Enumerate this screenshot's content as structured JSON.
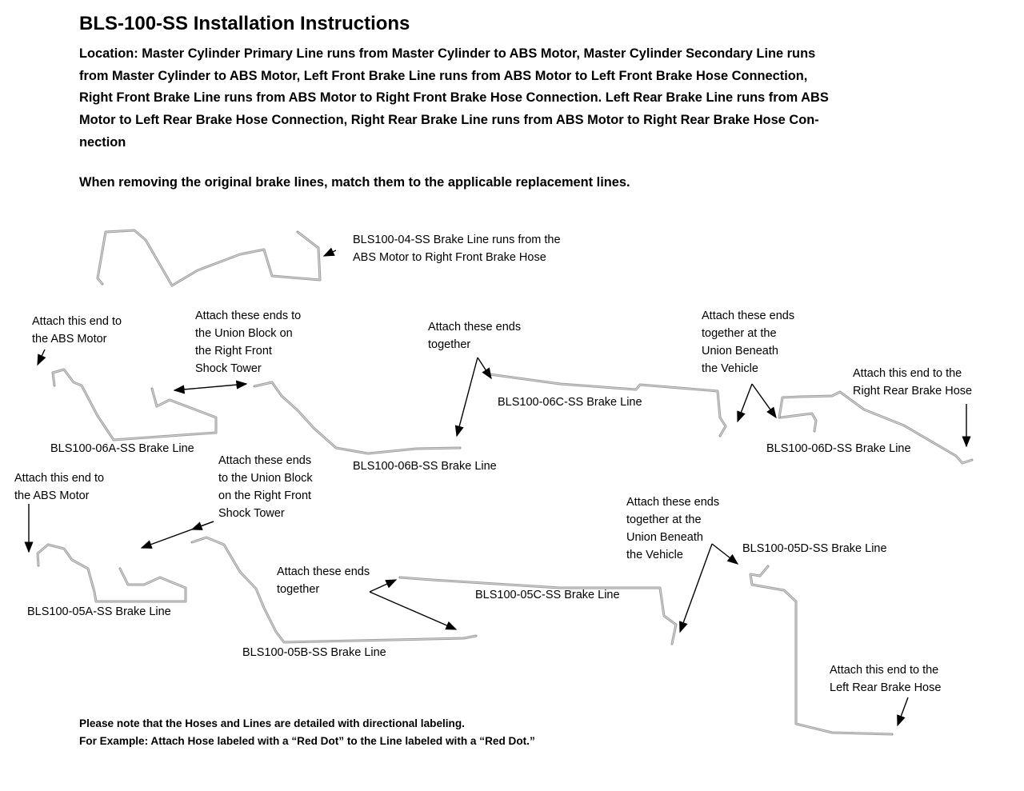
{
  "title": "BLS-100-SS Installation Instructions",
  "location_lines": [
    "Location: Master Cylinder Primary Line runs from Master Cylinder to ABS Motor, Master Cylinder Secondary Line runs",
    "from Master Cylinder to ABS Motor, Left Front Brake Line runs from ABS Motor to Left Front Brake Hose Connection,",
    "Right Front Brake Line runs from ABS Motor to Right Front Brake Hose Connection. Left Rear Brake Line runs from ABS",
    "Motor to Left Rear Brake Hose Connection, Right Rear Brake Line runs from ABS Motor to Right Rear Brake Hose Con-",
    "nection"
  ],
  "removing": "When removing the original brake lines, match them to the applicable replacement lines.",
  "labels": {
    "l04": [
      "BLS100-04-SS Brake Line runs from the",
      "ABS Motor to Right Front Brake Hose"
    ],
    "abs_top": [
      "Attach this end to",
      "the ABS Motor"
    ],
    "union_top": [
      "Attach these ends to",
      "the Union Block on",
      "the Right Front",
      "Shock Tower"
    ],
    "together_top": [
      "Attach these ends",
      "together"
    ],
    "beneath_top": [
      "Attach these ends",
      "together at the",
      "Union Beneath",
      "the Vehicle"
    ],
    "rr_hose": [
      "Attach this end to the",
      "Right Rear Brake Hose"
    ],
    "l06a": "BLS100-06A-SS Brake Line",
    "l06b": "BLS100-06B-SS Brake Line",
    "l06c": "BLS100-06C-SS Brake Line",
    "l06d": "BLS100-06D-SS Brake Line",
    "abs_bottom": [
      "Attach this end to",
      "the ABS Motor"
    ],
    "union_bottom": [
      "Attach these ends",
      "to the Union Block",
      "on the Right Front",
      "Shock Tower"
    ],
    "together_bottom": [
      "Attach these ends",
      "together"
    ],
    "beneath_bottom": [
      "Attach these ends",
      "together at the",
      "Union Beneath",
      "the Vehicle"
    ],
    "lr_hose": [
      "Attach this end to the",
      "Left Rear Brake Hose"
    ],
    "l05a": "BLS100-05A-SS Brake Line",
    "l05b": "BLS100-05B-SS Brake Line",
    "l05c": "BLS100-05C-SS Brake Line",
    "l05d": "BLS100-05D-SS Brake Line"
  },
  "note_lines": [
    "Please note that the Hoses and Lines are detailed with directional labeling.",
    "For Example: Attach Hose labeled with a “Red Dot” to the Line labeled with a “Red Dot.”"
  ],
  "colors": {
    "tube": "#9a9a9a"
  }
}
